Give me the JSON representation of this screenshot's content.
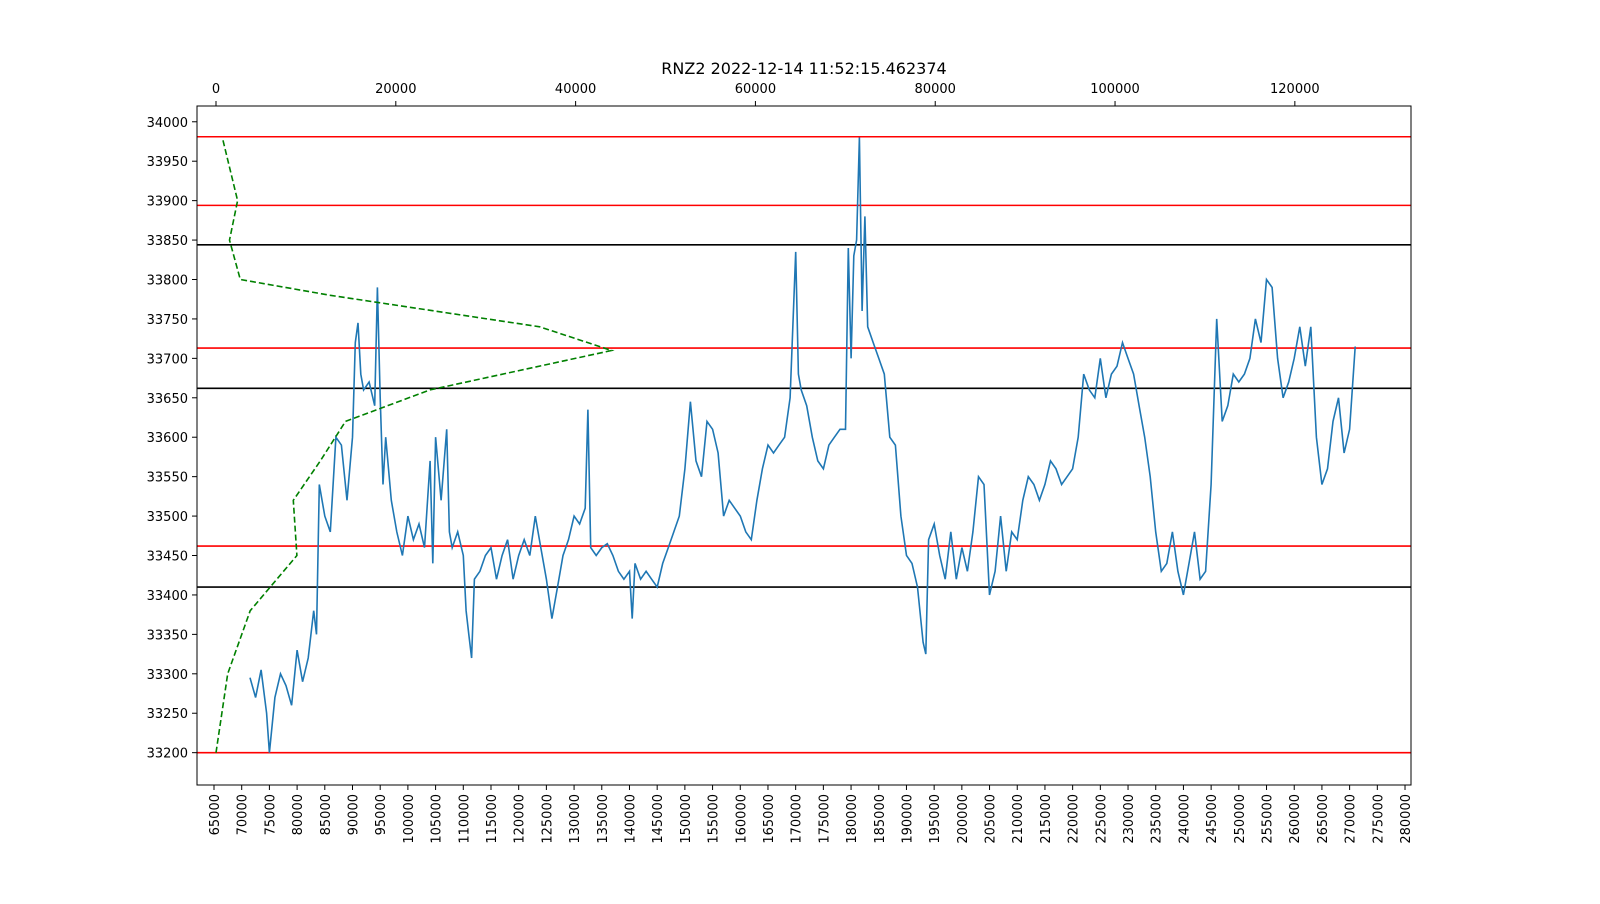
{
  "chart_data": {
    "type": "line",
    "title": "RNZ2 2022-12-14 11:52:15.462374",
    "xlim": [
      61930,
      281080
    ],
    "xticks": [
      65000,
      70000,
      75000,
      80000,
      85000,
      90000,
      95000,
      100000,
      105000,
      110000,
      115000,
      120000,
      125000,
      130000,
      135000,
      140000,
      145000,
      150000,
      155000,
      160000,
      165000,
      170000,
      175000,
      180000,
      185000,
      190000,
      195000,
      200000,
      205000,
      210000,
      215000,
      220000,
      225000,
      230000,
      235000,
      240000,
      245000,
      250000,
      255000,
      260000,
      265000,
      270000,
      275000,
      280000
    ],
    "x2lim": [
      -2113,
      132920
    ],
    "x2ticks": [
      0,
      20000,
      40000,
      60000,
      80000,
      100000,
      120000
    ],
    "ylim": [
      33159,
      34020
    ],
    "yticks": [
      33200,
      33250,
      33300,
      33350,
      33400,
      33450,
      33500,
      33550,
      33600,
      33650,
      33700,
      33750,
      33800,
      33850,
      33900,
      33950,
      34000
    ],
    "hlines": [
      {
        "value": 33981,
        "color": "#ff0000"
      },
      {
        "value": 33894,
        "color": "#ff0000"
      },
      {
        "value": 33844,
        "color": "#000000"
      },
      {
        "value": 33713,
        "color": "#ff0000"
      },
      {
        "value": 33662,
        "color": "#000000"
      },
      {
        "value": 33462,
        "color": "#ff0000"
      },
      {
        "value": 33410,
        "color": "#000000"
      },
      {
        "value": 33200,
        "color": "#ff0000"
      }
    ],
    "series": [
      {
        "color": "#1f77b4",
        "axis": "x",
        "x": [
          71500,
          72500,
          73500,
          74500,
          75000,
          76000,
          77000,
          78000,
          79000,
          80000,
          81000,
          82000,
          83000,
          83500,
          84000,
          85000,
          86000,
          87000,
          88000,
          89000,
          90000,
          90500,
          91000,
          91500,
          92000,
          93000,
          94000,
          94500,
          95000,
          95500,
          96000,
          97000,
          98000,
          99000,
          100000,
          101000,
          102000,
          103000,
          104000,
          104500,
          105000,
          106000,
          107000,
          107500,
          108000,
          109000,
          110000,
          110500,
          111000,
          111500,
          112000,
          113000,
          114000,
          115000,
          116000,
          117000,
          118000,
          119000,
          120000,
          121000,
          122000,
          123000,
          124000,
          125000,
          126000,
          127000,
          128000,
          129000,
          130000,
          131000,
          132000,
          132500,
          133000,
          134000,
          135000,
          136000,
          137000,
          138000,
          139000,
          140000,
          140500,
          141000,
          142000,
          143000,
          144000,
          145000,
          146000,
          147000,
          148000,
          149000,
          150000,
          151000,
          152000,
          153000,
          154000,
          155000,
          156000,
          157000,
          158000,
          159000,
          160000,
          161000,
          162000,
          163000,
          164000,
          165000,
          166000,
          167000,
          168000,
          169000,
          170000,
          170500,
          171000,
          172000,
          173000,
          174000,
          175000,
          176000,
          177000,
          178000,
          179000,
          179500,
          180000,
          180500,
          181000,
          181500,
          182000,
          182500,
          183000,
          184000,
          185000,
          186000,
          187000,
          188000,
          189000,
          190000,
          191000,
          192000,
          193000,
          193500,
          194000,
          195000,
          196000,
          197000,
          198000,
          199000,
          200000,
          201000,
          202000,
          203000,
          204000,
          205000,
          206000,
          207000,
          208000,
          209000,
          210000,
          211000,
          212000,
          213000,
          214000,
          215000,
          216000,
          217000,
          218000,
          219000,
          220000,
          221000,
          222000,
          223000,
          224000,
          225000,
          226000,
          227000,
          228000,
          229000,
          230000,
          231000,
          232000,
          233000,
          234000,
          235000,
          236000,
          237000,
          238000,
          239000,
          240000,
          241000,
          242000,
          243000,
          244000,
          245000,
          246000,
          247000,
          248000,
          249000,
          250000,
          251000,
          252000,
          253000,
          254000,
          255000,
          256000,
          257000,
          258000,
          259000,
          260000,
          261000,
          262000,
          263000,
          264000,
          265000,
          266000,
          267000,
          268000,
          269000,
          270000,
          271000
        ],
        "values": [
          33295,
          33270,
          33305,
          33250,
          33200,
          33270,
          33300,
          33285,
          33260,
          33330,
          33290,
          33320,
          33380,
          33350,
          33540,
          33500,
          33480,
          33600,
          33590,
          33520,
          33600,
          33720,
          33745,
          33680,
          33660,
          33670,
          33640,
          33790,
          33650,
          33540,
          33600,
          33520,
          33480,
          33450,
          33500,
          33470,
          33490,
          33460,
          33570,
          33440,
          33600,
          33520,
          33610,
          33480,
          33460,
          33480,
          33450,
          33380,
          33350,
          33320,
          33420,
          33430,
          33450,
          33460,
          33420,
          33450,
          33470,
          33420,
          33450,
          33470,
          33450,
          33500,
          33460,
          33420,
          33370,
          33410,
          33450,
          33470,
          33500,
          33490,
          33510,
          33635,
          33460,
          33450,
          33460,
          33465,
          33450,
          33430,
          33420,
          33430,
          33370,
          33440,
          33420,
          33430,
          33420,
          33410,
          33440,
          33460,
          33480,
          33500,
          33560,
          33645,
          33570,
          33550,
          33620,
          33610,
          33580,
          33500,
          33520,
          33510,
          33500,
          33480,
          33470,
          33520,
          33560,
          33590,
          33580,
          33590,
          33600,
          33650,
          33835,
          33680,
          33660,
          33640,
          33600,
          33570,
          33560,
          33590,
          33600,
          33610,
          33610,
          33840,
          33700,
          33830,
          33850,
          33980,
          33760,
          33880,
          33740,
          33720,
          33700,
          33680,
          33600,
          33590,
          33500,
          33450,
          33440,
          33410,
          33340,
          33325,
          33470,
          33490,
          33450,
          33420,
          33480,
          33420,
          33460,
          33430,
          33480,
          33550,
          33540,
          33400,
          33430,
          33500,
          33430,
          33480,
          33470,
          33520,
          33550,
          33540,
          33520,
          33540,
          33570,
          33560,
          33540,
          33550,
          33560,
          33600,
          33680,
          33660,
          33650,
          33700,
          33650,
          33680,
          33690,
          33720,
          33700,
          33680,
          33640,
          33600,
          33550,
          33480,
          33430,
          33440,
          33480,
          33430,
          33400,
          33440,
          33480,
          33420,
          33430,
          33540,
          33750,
          33620,
          33640,
          33680,
          33670,
          33680,
          33700,
          33750,
          33720,
          33800,
          33790,
          33700,
          33650,
          33670,
          33700,
          33740,
          33690,
          33740,
          33600,
          33540,
          33560,
          33620,
          33650,
          33580,
          33610,
          33715
        ]
      },
      {
        "color": "#008000",
        "axis": "x2",
        "style": "dashed",
        "x": [
          0,
          1300,
          3800,
          9000,
          8600,
          11600,
          14400,
          23800,
          44000,
          36000,
          12700,
          2700,
          1500,
          2400,
          700
        ],
        "values": [
          33200,
          33300,
          33380,
          33450,
          33520,
          33570,
          33620,
          33660,
          33710,
          33740,
          33780,
          33800,
          33850,
          33900,
          33980
        ]
      }
    ]
  }
}
